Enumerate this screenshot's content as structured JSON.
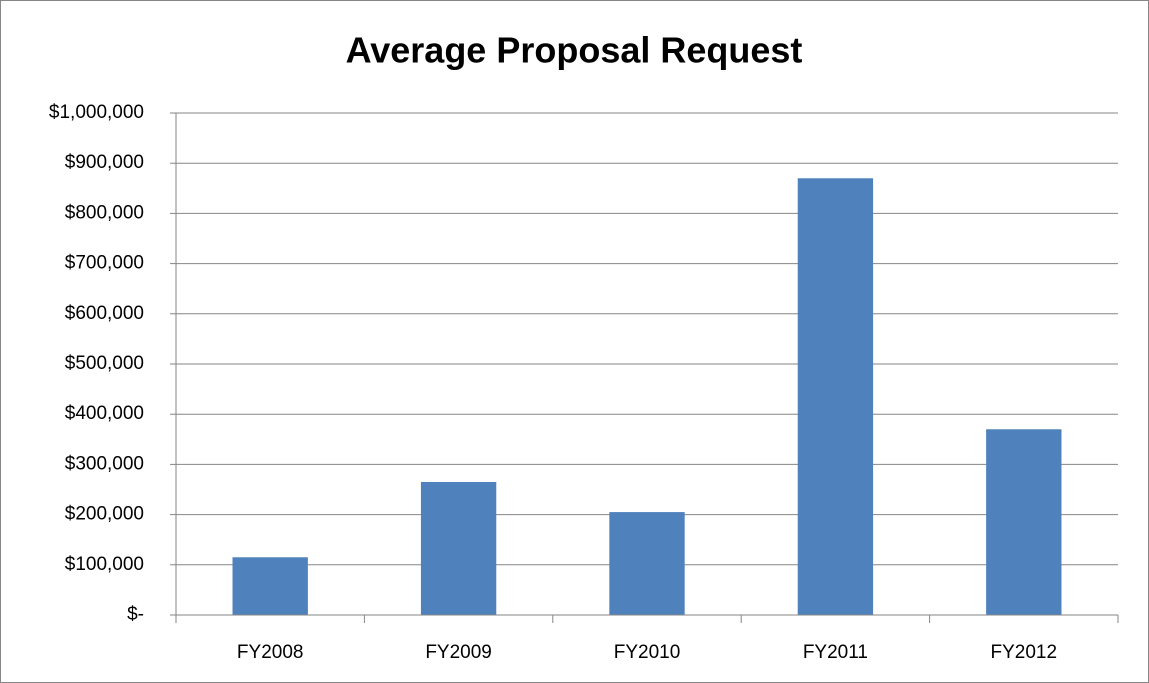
{
  "chart_data": {
    "type": "bar",
    "title": "Average Proposal Request",
    "categories": [
      "FY2008",
      "FY2009",
      "FY2010",
      "FY2011",
      "FY2012"
    ],
    "values": [
      115000,
      265000,
      205000,
      870000,
      370000
    ],
    "color": "#4f81bd",
    "ylim": [
      0,
      1000000
    ],
    "yticks": [
      {
        "value": 0,
        "label": "$-"
      },
      {
        "value": 100000,
        "label": "$100,000"
      },
      {
        "value": 200000,
        "label": "$200,000"
      },
      {
        "value": 300000,
        "label": "$300,000"
      },
      {
        "value": 400000,
        "label": "$400,000"
      },
      {
        "value": 500000,
        "label": "$500,000"
      },
      {
        "value": 600000,
        "label": "$600,000"
      },
      {
        "value": 700000,
        "label": "$700,000"
      },
      {
        "value": 800000,
        "label": "$800,000"
      },
      {
        "value": 900000,
        "label": "$900,000"
      },
      {
        "value": 1000000,
        "label": "$1,000,000"
      }
    ],
    "grid": true
  }
}
